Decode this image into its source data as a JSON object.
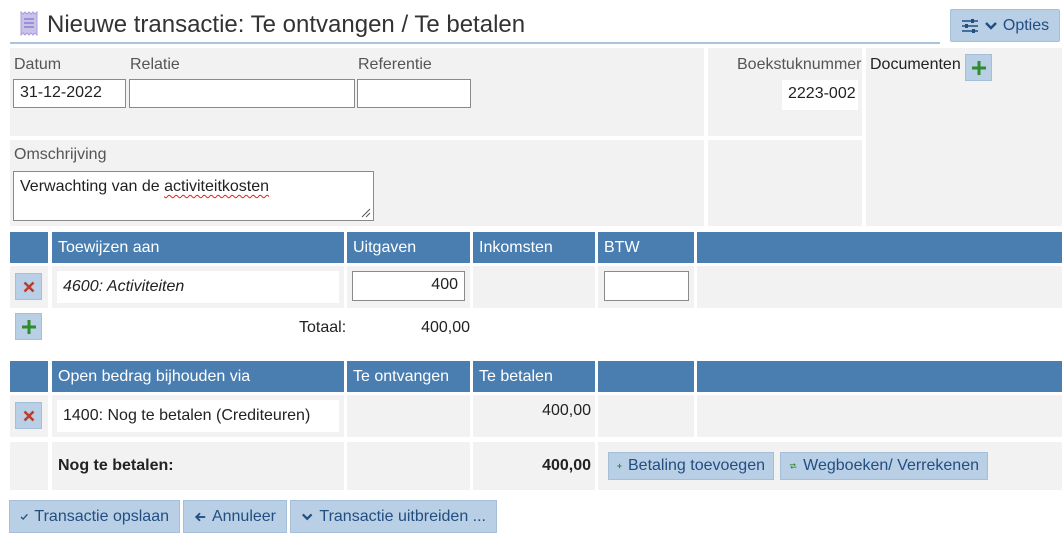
{
  "header": {
    "title": "Nieuwe transactie: Te ontvangen / Te betalen",
    "options_label": "Opties"
  },
  "form": {
    "datum_label": "Datum",
    "datum_value": "31-12-2022",
    "relatie_label": "Relatie",
    "relatie_value": "",
    "referentie_label": "Referentie",
    "referentie_value": "",
    "boekstuk_label": "Boekstuknummer",
    "boekstuk_value": "2223-002",
    "documenten_label": "Documenten",
    "omschrijving_label": "Omschrijving",
    "omschrijving_value_a": "Verwachting van de ",
    "omschrijving_value_b": "activiteitkosten"
  },
  "allocation": {
    "headers": [
      "Toewijzen aan",
      "Uitgaven",
      "Inkomsten",
      "BTW"
    ],
    "rows": [
      {
        "account": "4600: Activiteiten",
        "uitgaven": "400",
        "btw": ""
      }
    ],
    "total_label": "Totaal:",
    "total_value": "400,00"
  },
  "open_amount": {
    "headers": [
      "Open bedrag bijhouden via",
      "Te ontvangen",
      "Te betalen"
    ],
    "rows": [
      {
        "account": "1400: Nog te betalen (Crediteuren)",
        "te_betalen": "400,00"
      }
    ],
    "summary_label": "Nog te betalen:",
    "summary_value": "400,00",
    "add_payment_label": "Betaling toevoegen",
    "writeoff_label": "Wegboeken/ Verrekenen"
  },
  "footer": {
    "save_label": "Transactie opslaan",
    "cancel_label": "Annuleer",
    "extend_label": "Transactie uitbreiden ..."
  },
  "colors": {
    "header_blue": "#4a7eb1",
    "button_blue": "#b8cfe6",
    "delete_red": "#c0392b",
    "add_green": "#2e8b2e"
  }
}
